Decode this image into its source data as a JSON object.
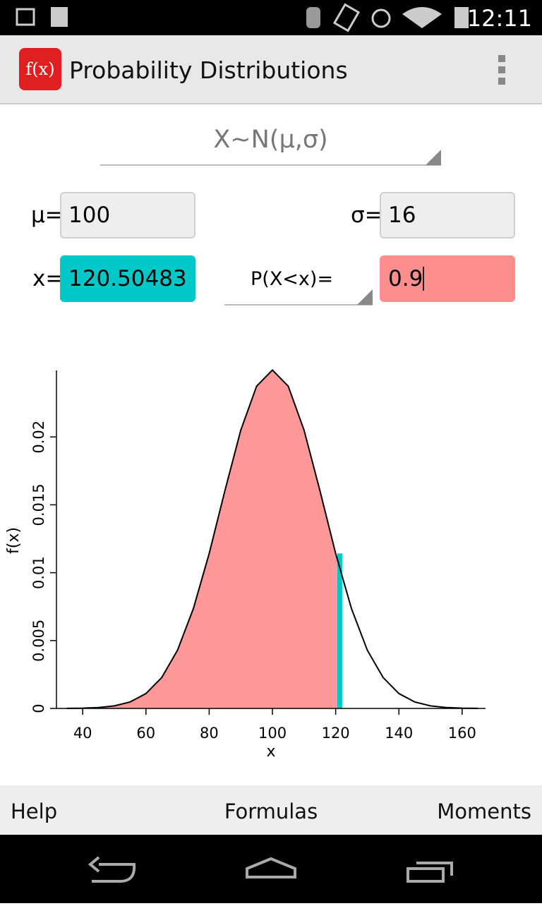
{
  "status_bar": {
    "time": "12:11"
  },
  "app_bar": {
    "icon_label": "f(x)",
    "title": "Probability Distributions"
  },
  "distribution": "X~N(μ,σ)",
  "params": {
    "mu_label": "μ=",
    "mu_value": "100",
    "sigma_label": "σ=",
    "sigma_value": "16",
    "x_label": "x=",
    "x_value": "120.50483",
    "prob_label": "P(X<x)=",
    "prob_value": "0.9"
  },
  "chart_data": {
    "type": "area",
    "x_label": "x",
    "y_label": "f(x)",
    "x": [
      35,
      40,
      45,
      50,
      55,
      60,
      65,
      70,
      75,
      80,
      85,
      90,
      95,
      100,
      105,
      110,
      115,
      120,
      125,
      130,
      135,
      140,
      145,
      150,
      155,
      160,
      165
    ],
    "values": [
      6.5e-06,
      2.2e-05,
      6.78e-05,
      0.000189,
      0.000478,
      0.001095,
      0.002279,
      0.004298,
      0.007355,
      0.011413,
      0.016066,
      0.020508,
      0.023741,
      0.02493,
      0.023741,
      0.020508,
      0.016066,
      0.011413,
      0.007355,
      0.004298,
      0.002279,
      0.001095,
      0.000478,
      0.000189,
      6.78e-05,
      2.2e-05,
      6.5e-06
    ],
    "line_color": "#000000",
    "fill_color": "#ff9999",
    "marker_color": "#00c8c8",
    "xlim": [
      31.7,
      167.4
    ],
    "ylim": [
      0,
      0.0249
    ],
    "xticks": [
      40,
      60,
      80,
      100,
      120,
      140,
      160
    ],
    "yticks": [
      0,
      0.005,
      0.01,
      0.015,
      0.02
    ]
  },
  "bottom_bar": {
    "help": "Help",
    "formulas": "Formulas",
    "moments": "Moments"
  }
}
